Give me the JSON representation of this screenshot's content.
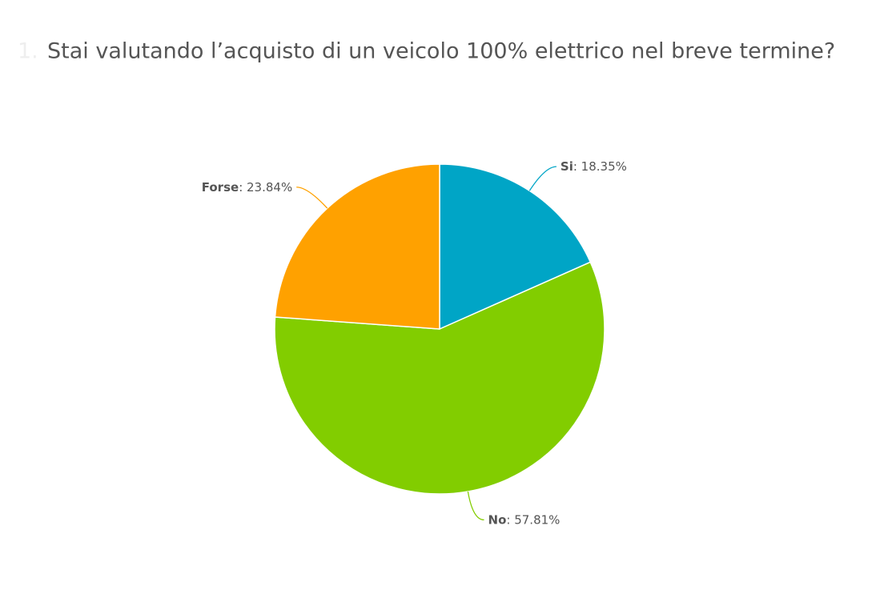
{
  "chart_data": {
    "type": "pie",
    "question_number": "1.",
    "title": "Stai valutando l’acquisto di un veicolo 100% elettrico nel breve termine?",
    "categories": [
      "Si",
      "No",
      "Forse"
    ],
    "values": [
      18.35,
      57.81,
      23.84
    ],
    "value_labels": [
      ": 18.35%",
      ": 57.81%",
      ": 23.84%"
    ],
    "colors": [
      "#00a5c6",
      "#82cd00",
      "#ffa100"
    ]
  }
}
